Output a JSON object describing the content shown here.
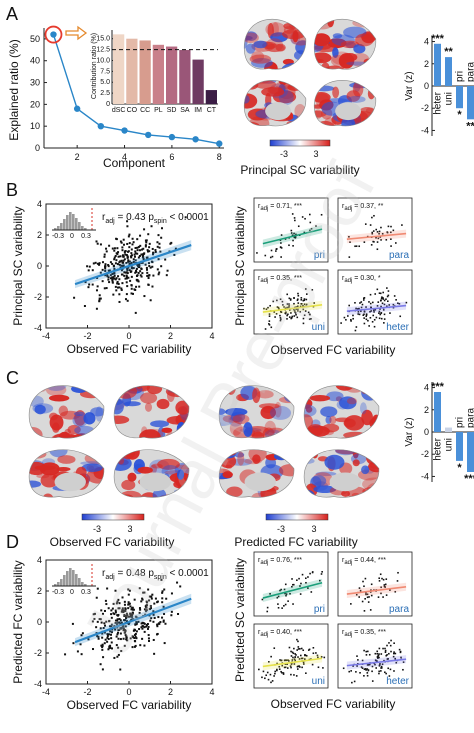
{
  "panels": {
    "A": "A",
    "B": "B",
    "C": "C",
    "D": "D"
  },
  "colors": {
    "line": "#2a86c8",
    "red": "#d73027",
    "blue": "#2b5fd1",
    "bar": "#4a90d9",
    "pri": "#1a9f7a",
    "para": "#f08a73",
    "uni": "#e6e24a",
    "heter": "#7a7ae6"
  },
  "scree": {
    "xlabel": "Component",
    "ylabel": "Explained ratio (%)",
    "xticks": [
      "2",
      "4",
      "6",
      "8"
    ],
    "yticks": [
      "0",
      "10",
      "20",
      "30",
      "40",
      "50"
    ]
  },
  "contrib": {
    "ylabel": "Contribution ratio (%)",
    "yticks": [
      "0",
      "2.5",
      "5.0",
      "7.5",
      "10.0",
      "12.5",
      "15.0"
    ],
    "categories": [
      "dSC",
      "CO",
      "CC",
      "PL",
      "SD",
      "SA",
      "IM",
      "CT"
    ]
  },
  "brainA_caption": "Principal SC variability",
  "scale": {
    "min": "-3",
    "max": "3"
  },
  "varA": {
    "ylabel": "Var (z)",
    "yticks": [
      "-4",
      "-2",
      "0",
      "2",
      "4"
    ],
    "labels": [
      "heter",
      "uni",
      "pri",
      "para"
    ],
    "stars": [
      "***",
      "**",
      "*",
      "**"
    ]
  },
  "scatterB": {
    "xlabel": "Observed FC variability",
    "ylabel": "Principal SC variability",
    "xticks": [
      "-4",
      "-2",
      "0",
      "2",
      "4"
    ],
    "yticks": [
      "-4",
      "-2",
      "0",
      "2",
      "4"
    ],
    "r_text": "r",
    "r_sub": "adj",
    "r_val": " = 0.43  p",
    "p_sub": "spin",
    "p_val": " < 0.0001",
    "hist_ticks": [
      "-0.3",
      "0",
      "0.3"
    ]
  },
  "smallB": {
    "xlabel": "Observed FC variability",
    "ylabel": "Principal SC variability",
    "panels": [
      {
        "r": " = 0.71, ***",
        "tag": "pri"
      },
      {
        "r": " = 0.37, **",
        "tag": "para"
      },
      {
        "r": " = 0.35, ***",
        "tag": "uni"
      },
      {
        "r": " = 0.30, *",
        "tag": "heter"
      }
    ]
  },
  "brainC": {
    "left_caption": "Observed FC variability",
    "right_caption": "Predicted FC variability"
  },
  "varC": {
    "ylabel": "Var (z)",
    "yticks": [
      "-4",
      "-2",
      "0",
      "2",
      "4"
    ],
    "labels": [
      "heter",
      "uni",
      "pri",
      "para"
    ],
    "stars": [
      "***",
      "*",
      "***"
    ]
  },
  "scatterD": {
    "xlabel": "Observed FC variability",
    "ylabel": "Predicted FC variability",
    "xticks": [
      "-4",
      "-2",
      "0",
      "2",
      "4"
    ],
    "yticks": [
      "-4",
      "-2",
      "0",
      "2",
      "4"
    ],
    "r_text": "r",
    "r_sub": "adj",
    "r_val": " = 0.48  p",
    "p_sub": "spin",
    "p_val": " < 0.0001",
    "hist_ticks": [
      "-0.3",
      "0",
      "0.3"
    ]
  },
  "smallD": {
    "xlabel": "Observed FC variability",
    "ylabel": "Predicted SC variability",
    "panels": [
      {
        "r": " = 0.76, ***",
        "tag": "pri"
      },
      {
        "r": " = 0.44, ***",
        "tag": "para"
      },
      {
        "r": " = 0.40, ***",
        "tag": "uni"
      },
      {
        "r": " = 0.35, ***",
        "tag": "heter"
      }
    ]
  },
  "watermark": "Journal Pre-proof",
  "chart_data": [
    {
      "type": "line",
      "title": "",
      "xlabel": "Component",
      "ylabel": "Explained ratio (%)",
      "x": [
        1,
        2,
        3,
        4,
        5,
        6,
        7,
        8
      ],
      "values": [
        52,
        18,
        10,
        8,
        6,
        5,
        4,
        2
      ],
      "ylim": [
        0,
        55
      ],
      "xlim": [
        0.6,
        8.2
      ]
    },
    {
      "type": "bar",
      "title": "",
      "ylabel": "Contribution ratio (%)",
      "categories": [
        "dSC",
        "CO",
        "CC",
        "PL",
        "SD",
        "SA",
        "IM",
        "CT"
      ],
      "values": [
        16,
        15,
        14.6,
        13.6,
        13.2,
        12.4,
        10.2,
        3.2
      ],
      "ylim": [
        0,
        17
      ],
      "reference_line": 12.5
    },
    {
      "type": "bar",
      "ylabel": "Var (z)",
      "categories": [
        "heter",
        "uni",
        "pri",
        "para"
      ],
      "values": [
        3.8,
        2.6,
        -2.0,
        -3.0
      ],
      "ylim": [
        -4.5,
        4.5
      ]
    },
    {
      "type": "bar",
      "ylabel": "Var (z)",
      "categories": [
        "heter",
        "uni",
        "pri",
        "para"
      ],
      "values": [
        3.6,
        0.4,
        -2.6,
        -3.6
      ],
      "ylim": [
        -4.5,
        4.5
      ]
    }
  ]
}
